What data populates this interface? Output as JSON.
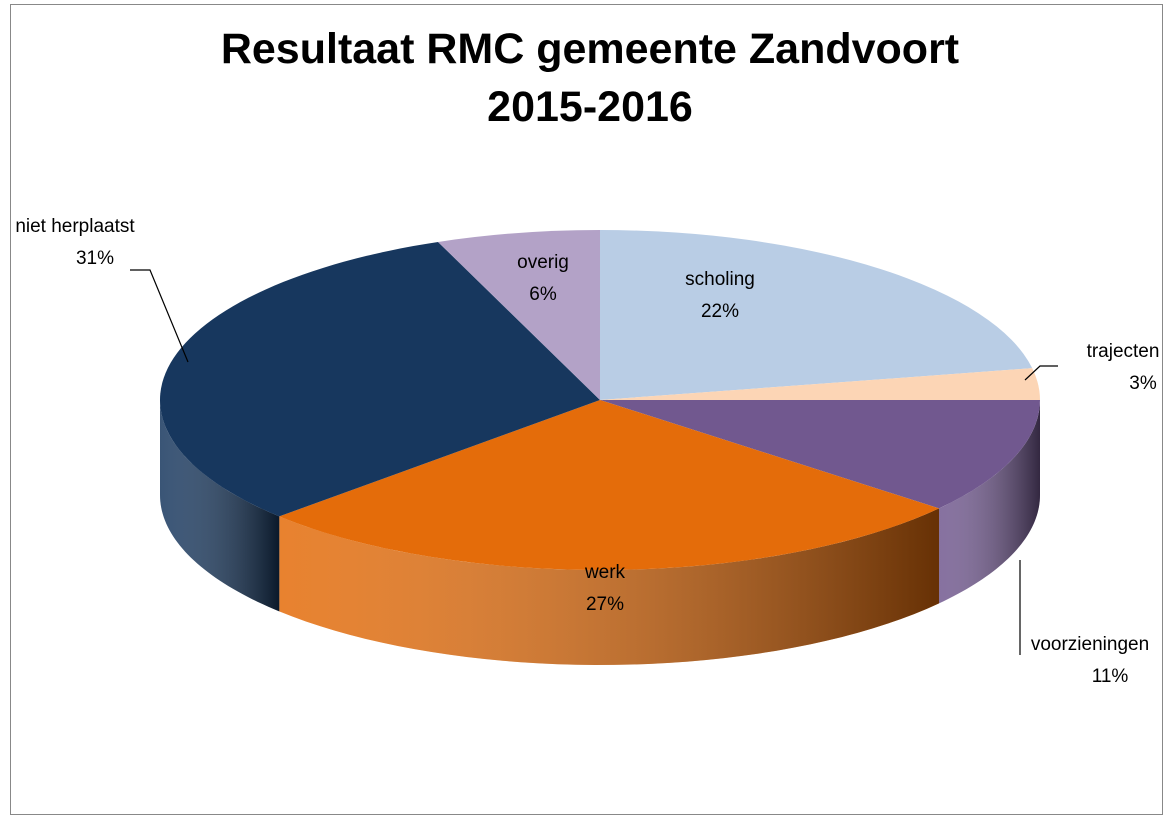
{
  "chart_data": {
    "type": "pie3d",
    "title": "Resultaat RMC gemeente Zandvoort 2015-2016",
    "categories": [
      "scholing",
      "trajecten",
      "voorzieningen",
      "werk",
      "niet herplaatst",
      "overig"
    ],
    "values": [
      22,
      3,
      11,
      27,
      31,
      6
    ],
    "value_labels": [
      "22%",
      "3%",
      "11%",
      "27%",
      "31%",
      "6%"
    ],
    "colors": [
      "#b9cde5",
      "#fcd5b5",
      "#71588f",
      "#e46c0a",
      "#17375e",
      "#b3a2c7"
    ]
  }
}
